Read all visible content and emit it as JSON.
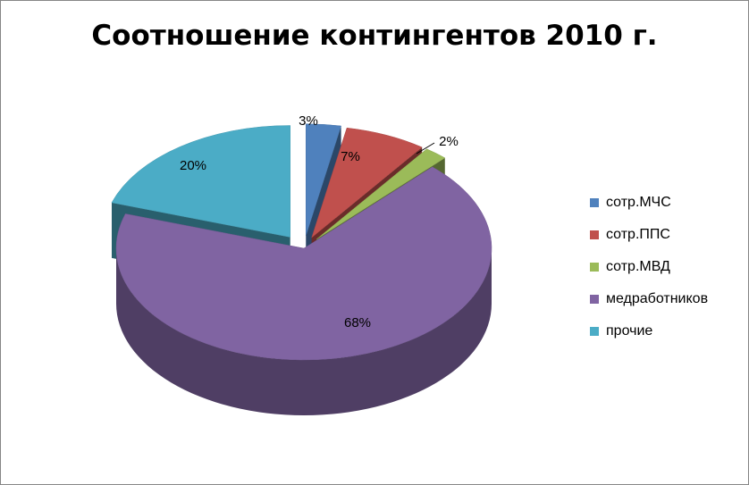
{
  "chart_data": {
    "type": "pie",
    "title": "Соотношение контингентов 2010 г.",
    "categories": [
      "сотр.МЧС",
      "сотр.ППС",
      "сотр.МВД",
      "медработников",
      "прочие"
    ],
    "values": [
      3,
      7,
      2,
      68,
      20
    ],
    "labels": [
      "3%",
      "7%",
      "2%",
      "68%",
      "20%"
    ],
    "colors": [
      "#4F81BD",
      "#C0504D",
      "#9BBB59",
      "#8064A2",
      "#4BACC6"
    ],
    "legend": "right",
    "style": "3d-exploded"
  }
}
